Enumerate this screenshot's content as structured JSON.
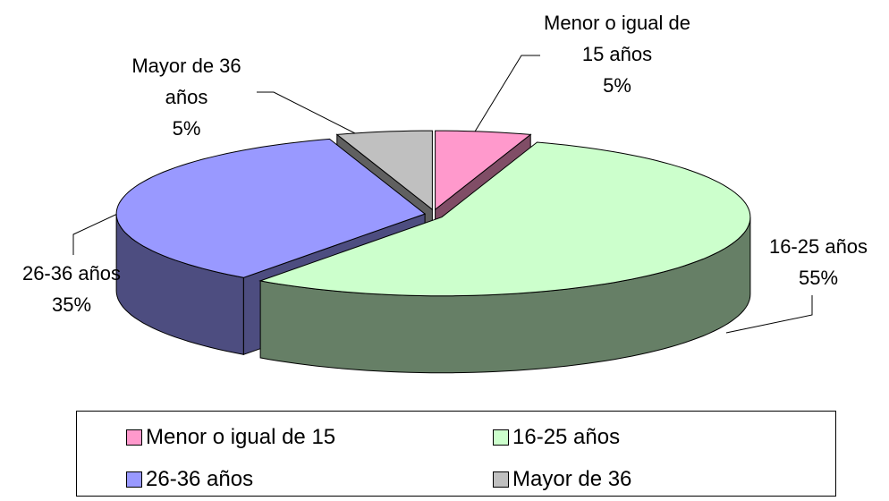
{
  "chart_data": {
    "type": "pie3d",
    "categories": [
      "Menor o igual de 15",
      "16-25 años",
      "26-36 años",
      "Mayor de 36"
    ],
    "labels": [
      "Menor o igual de 15 años",
      "16-25 años",
      "26-36 años",
      "Mayor de 36 años"
    ],
    "values": [
      5,
      55,
      35,
      5
    ],
    "value_labels": [
      "5%",
      "55%",
      "35%",
      "5%"
    ],
    "colors": [
      "#ff99cc",
      "#ccffcc",
      "#9999ff",
      "#c0c0c0"
    ],
    "side_colors": [
      "#804d66",
      "#667f66",
      "#4d4d80",
      "#606060"
    ],
    "legend": "bottom"
  }
}
